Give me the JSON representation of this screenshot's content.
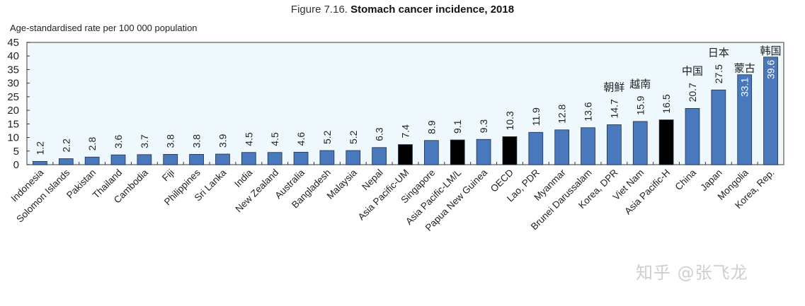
{
  "figure": {
    "prefix": "Figure 7.16.",
    "title": "Stomach cancer incidence, 2018"
  },
  "chart_data": {
    "type": "bar",
    "title": "Stomach cancer incidence, 2018",
    "xlabel": "",
    "ylabel": "Age-standardised rate per 100 000 population",
    "ylim": [
      0,
      45
    ],
    "yticks": [
      0,
      5,
      10,
      15,
      20,
      25,
      30,
      35,
      40,
      45
    ],
    "grid": false,
    "legend": "none",
    "categories": [
      "Indonesia",
      "Solomon Islands",
      "Pakistan",
      "Thailand",
      "Cambodia",
      "Fiji",
      "Philippines",
      "Sri Lanka",
      "India",
      "New Zealand",
      "Australia",
      "Bangladesh",
      "Malaysia",
      "Nepal",
      "Asia Pacific-UM",
      "Singapore",
      "Asia Pacific-LM/L",
      "Papua New Guinea",
      "OECD",
      "Lao, PDR",
      "Myanmar",
      "Brunei Darussalam",
      "Korea, DPR",
      "Viet Nam",
      "Asia Pacific-H",
      "China",
      "Japan",
      "Mongolia",
      "Korea, Rep."
    ],
    "values": [
      1.2,
      2.2,
      2.8,
      3.6,
      3.7,
      3.8,
      3.8,
      3.9,
      4.5,
      4.5,
      4.6,
      5.2,
      5.2,
      6.3,
      7.4,
      8.9,
      9.1,
      9.3,
      10.3,
      11.9,
      12.8,
      13.6,
      14.7,
      15.9,
      16.5,
      20.7,
      27.5,
      33.1,
      39.6
    ],
    "highlight": [
      false,
      false,
      false,
      false,
      false,
      false,
      false,
      false,
      false,
      false,
      false,
      false,
      false,
      false,
      true,
      false,
      true,
      false,
      true,
      false,
      false,
      false,
      false,
      false,
      true,
      false,
      false,
      false,
      false
    ],
    "value_labels_inside": [
      false,
      false,
      false,
      false,
      false,
      false,
      false,
      false,
      false,
      false,
      false,
      false,
      false,
      false,
      false,
      false,
      false,
      false,
      false,
      false,
      false,
      false,
      false,
      false,
      false,
      false,
      false,
      true,
      true
    ],
    "annotations": [
      {
        "category": "Korea, DPR",
        "text": "朝鲜"
      },
      {
        "category": "Viet Nam",
        "text": "越南"
      },
      {
        "category": "China",
        "text": "中国"
      },
      {
        "category": "Japan",
        "text": "日本"
      },
      {
        "category": "Mongolia",
        "text": "蒙古"
      },
      {
        "category": "Korea, Rep.",
        "text": "韩国"
      }
    ]
  },
  "colors": {
    "bar": "#4a78bd",
    "highlight_bar": "#000000",
    "plot_bg": "#eef8fd",
    "axis": "#333333"
  },
  "watermark": "知乎 @张飞龙"
}
